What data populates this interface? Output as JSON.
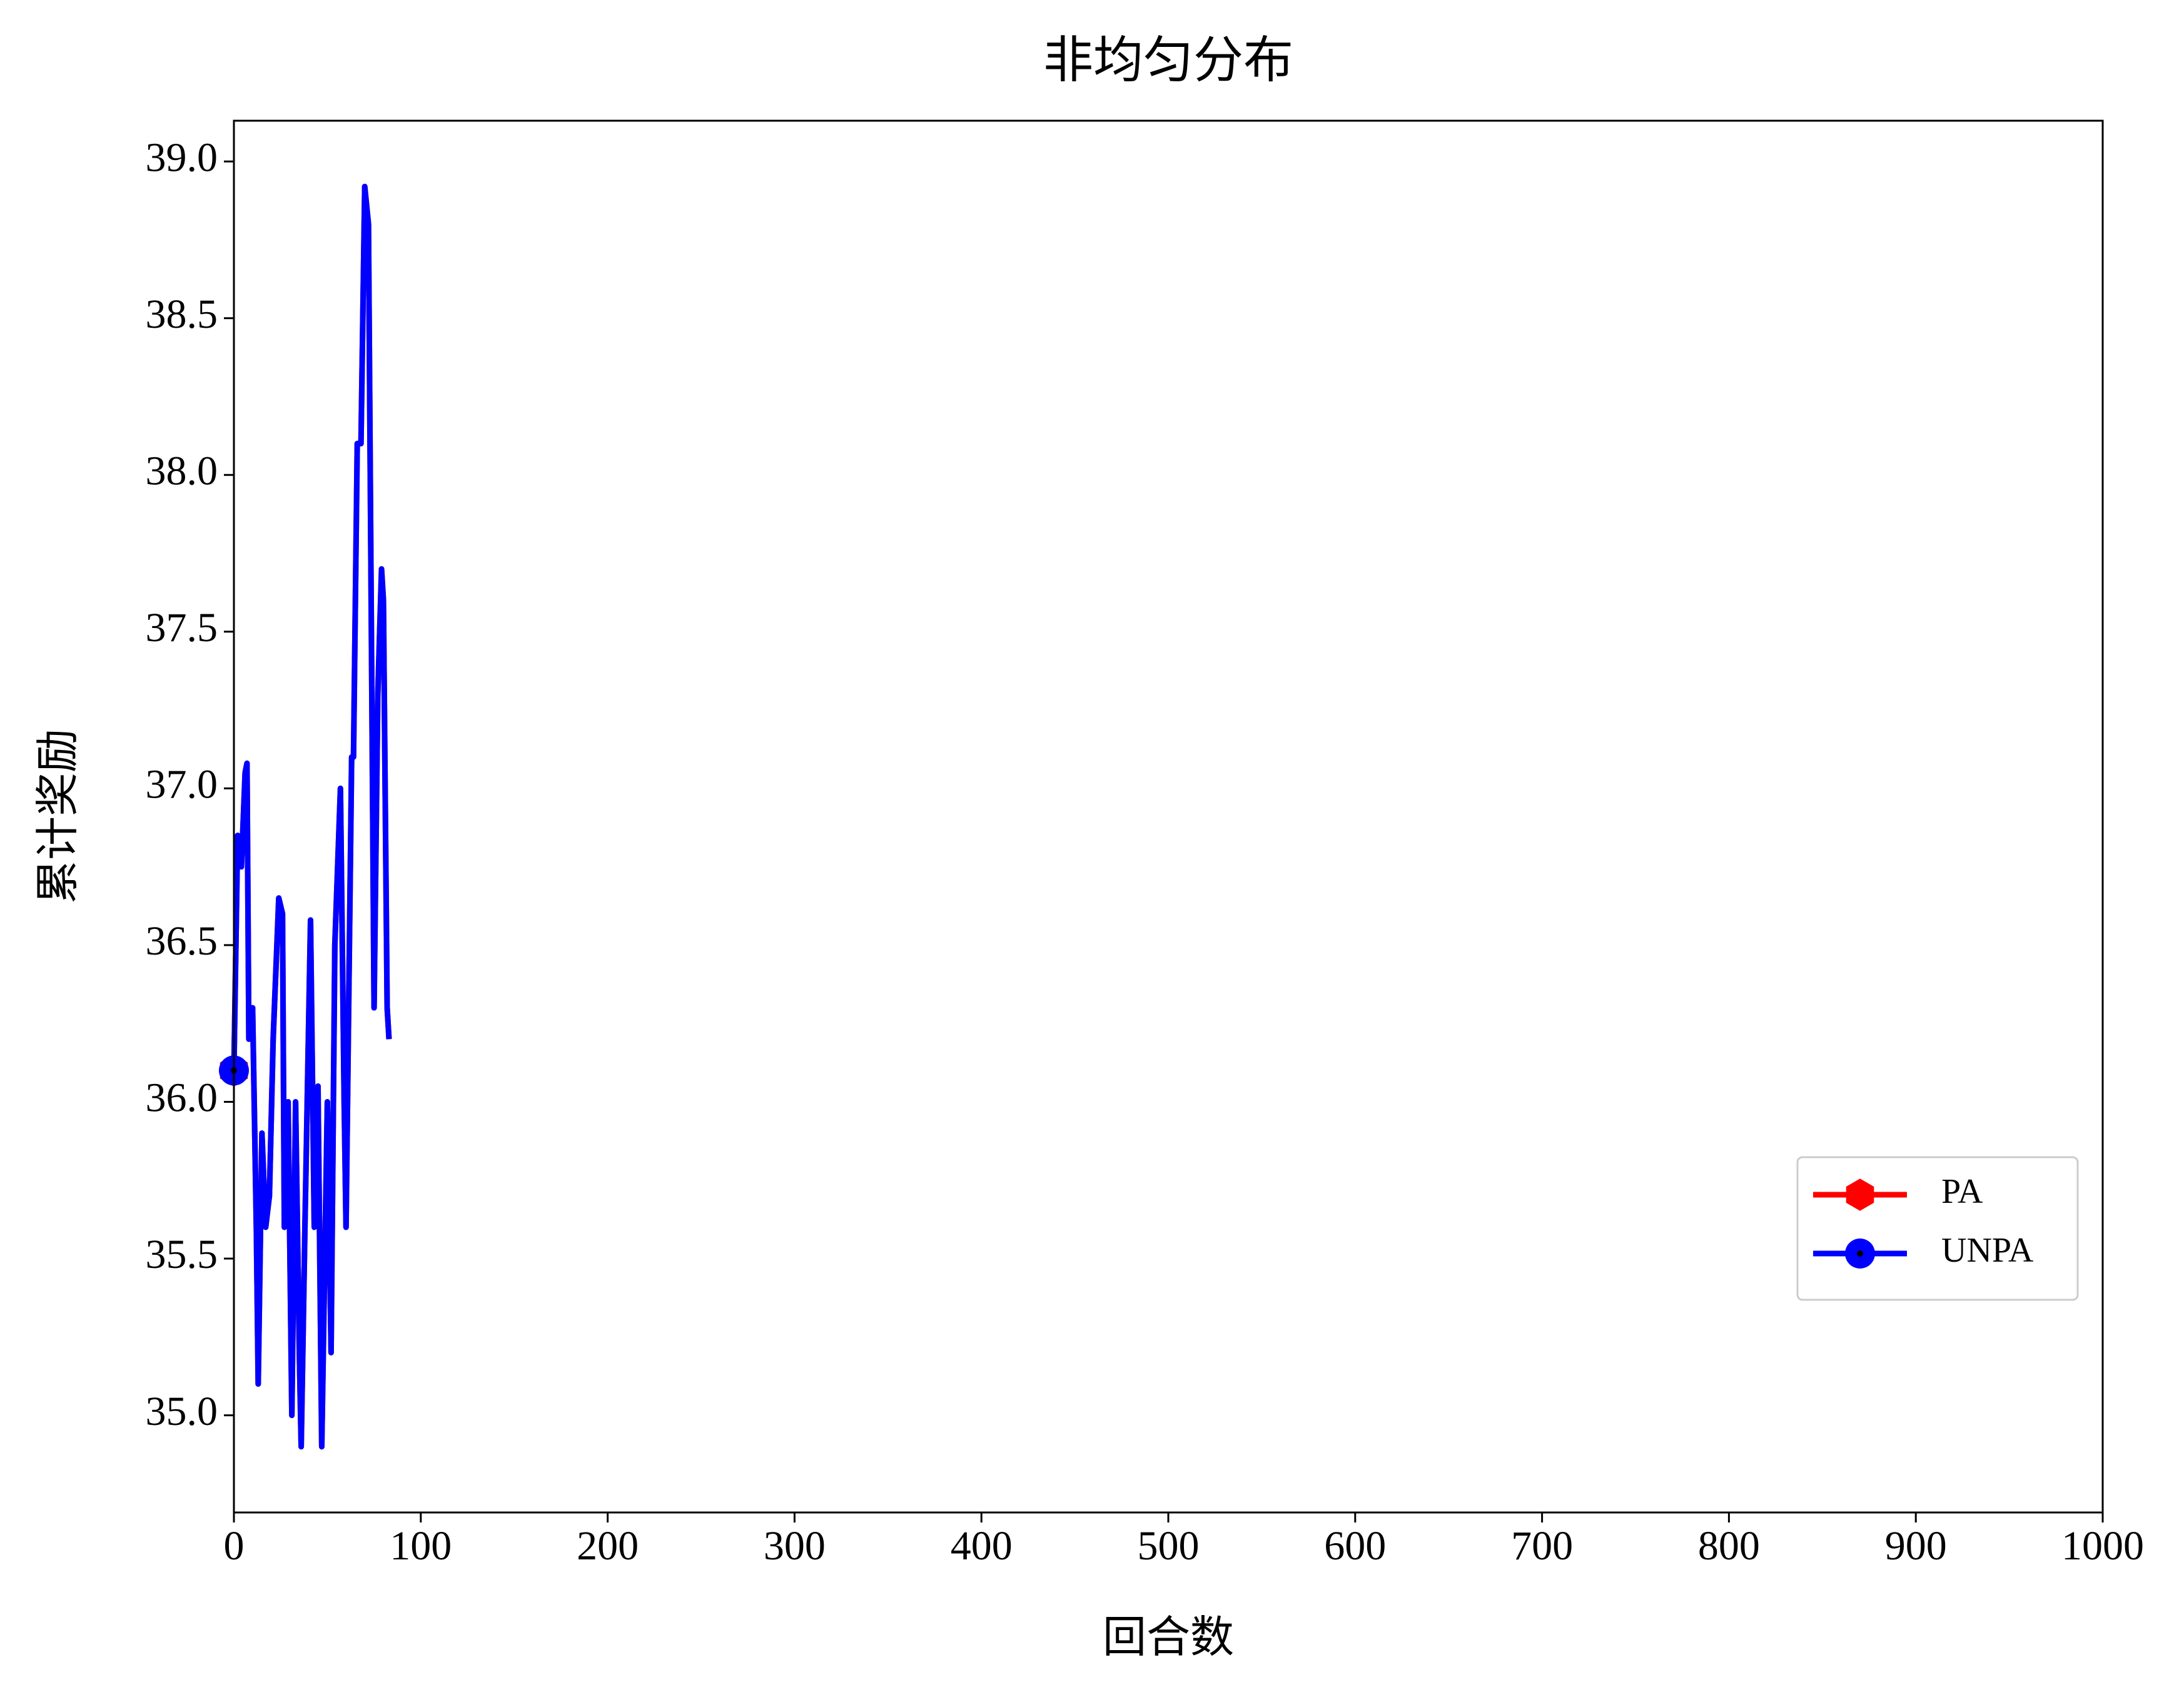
{
  "chart_data": {
    "type": "line",
    "title": "非均匀分布",
    "xlabel": "回合数",
    "ylabel": "累计奖励",
    "x": [
      0,
      2,
      4,
      6,
      7,
      8,
      10,
      12,
      13,
      15,
      17,
      19,
      21,
      24,
      26,
      27,
      29,
      31,
      33,
      35,
      36,
      38,
      41,
      43,
      45,
      47,
      50,
      52,
      54,
      57,
      59,
      60,
      63,
      64,
      66,
      68,
      70,
      72,
      75,
      77,
      79,
      80,
      82,
      83
    ],
    "series": [
      {
        "name": "PA",
        "color": "#ff0000",
        "marker": "h",
        "values": [
          36.1,
          36.85,
          36.75,
          37.05,
          37.08,
          36.2,
          36.3,
          35.6,
          35.1,
          35.9,
          35.6,
          35.7,
          36.2,
          36.65,
          36.6,
          35.6,
          36.0,
          35.0,
          36.0,
          35.2,
          34.9,
          35.6,
          36.58,
          35.6,
          36.05,
          34.9,
          36.0,
          35.2,
          36.5,
          37.0,
          36.0,
          35.6,
          37.1,
          37.1,
          38.1,
          38.1,
          38.92,
          38.8,
          36.3,
          37.3,
          37.7,
          37.6,
          36.3,
          36.2
        ]
      },
      {
        "name": "UNPA",
        "color": "#0000ff",
        "marker": "o",
        "values": [
          36.1,
          36.85,
          36.75,
          37.05,
          37.08,
          36.2,
          36.3,
          35.6,
          35.1,
          35.9,
          35.6,
          35.7,
          36.2,
          36.65,
          36.6,
          35.6,
          36.0,
          35.0,
          36.0,
          35.2,
          34.9,
          35.6,
          36.58,
          35.6,
          36.05,
          34.9,
          36.0,
          35.2,
          36.5,
          37.0,
          36.0,
          35.6,
          37.1,
          37.1,
          38.1,
          38.1,
          38.92,
          38.8,
          36.3,
          37.3,
          37.7,
          37.6,
          36.3,
          36.2
        ]
      }
    ],
    "xlim": [
      0,
      1000
    ],
    "xticks": [
      0,
      100,
      200,
      300,
      400,
      500,
      600,
      700,
      800,
      900,
      1000
    ],
    "ylim": [
      34.69,
      39.13
    ],
    "yticks": [
      {
        "value": 35,
        "label": "35.0"
      },
      35.5,
      {
        "value": 36,
        "label": "36.0"
      },
      36.5,
      {
        "value": 37,
        "label": "37.0"
      },
      37.5,
      {
        "value": 38,
        "label": "38.0"
      },
      38.5,
      {
        "value": 39,
        "label": "39.0"
      }
    ],
    "grid": false,
    "legend": "lower right"
  }
}
